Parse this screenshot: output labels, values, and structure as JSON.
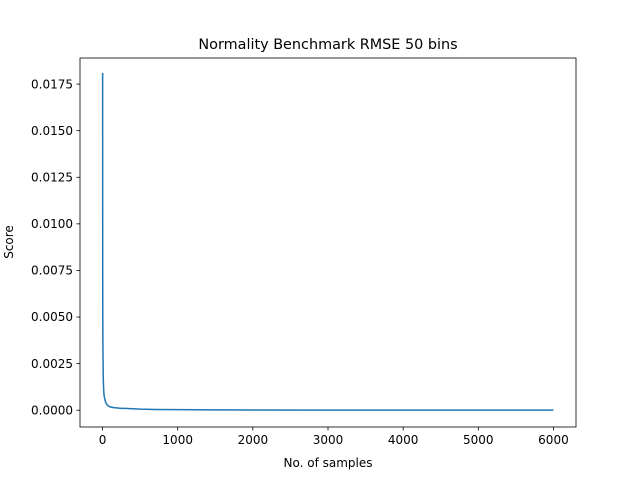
{
  "chart_data": {
    "type": "line",
    "title": "Normality Benchmark RMSE 50 bins",
    "xlabel": "No. of samples",
    "ylabel": "Score",
    "xlim": [
      -300,
      6300
    ],
    "ylim": [
      -0.0009,
      0.0189
    ],
    "xticks": [
      0,
      1000,
      2000,
      3000,
      4000,
      5000,
      6000
    ],
    "xtick_labels": [
      "0",
      "1000",
      "2000",
      "3000",
      "4000",
      "5000",
      "6000"
    ],
    "yticks": [
      0,
      0.0025,
      0.005,
      0.0075,
      0.01,
      0.0125,
      0.015,
      0.0175
    ],
    "ytick_labels": [
      "0.0000",
      "0.0025",
      "0.0050",
      "0.0075",
      "0.0100",
      "0.0125",
      "0.0150",
      "0.0175"
    ],
    "grid": false,
    "line_color": "#1f77b4",
    "series": [
      {
        "x": [
          1,
          2,
          3,
          5,
          8,
          10,
          15,
          20,
          30,
          40,
          50,
          70,
          100,
          150,
          200,
          250,
          300,
          400,
          500,
          700,
          1000,
          1500,
          2000,
          3000,
          4000,
          5000,
          6000
        ],
        "y": [
          0.0181,
          0.0075,
          0.005,
          0.0035,
          0.0022,
          0.0016,
          0.0011,
          0.0008,
          0.0006,
          0.00045,
          0.00035,
          0.00025,
          0.00018,
          0.00014,
          0.00012,
          0.0001,
          0.0001,
          8e-05,
          6e-05,
          4e-05,
          3e-05,
          2e-05,
          1e-05,
          8e-06,
          6e-06,
          5e-06,
          4e-06
        ]
      }
    ]
  }
}
